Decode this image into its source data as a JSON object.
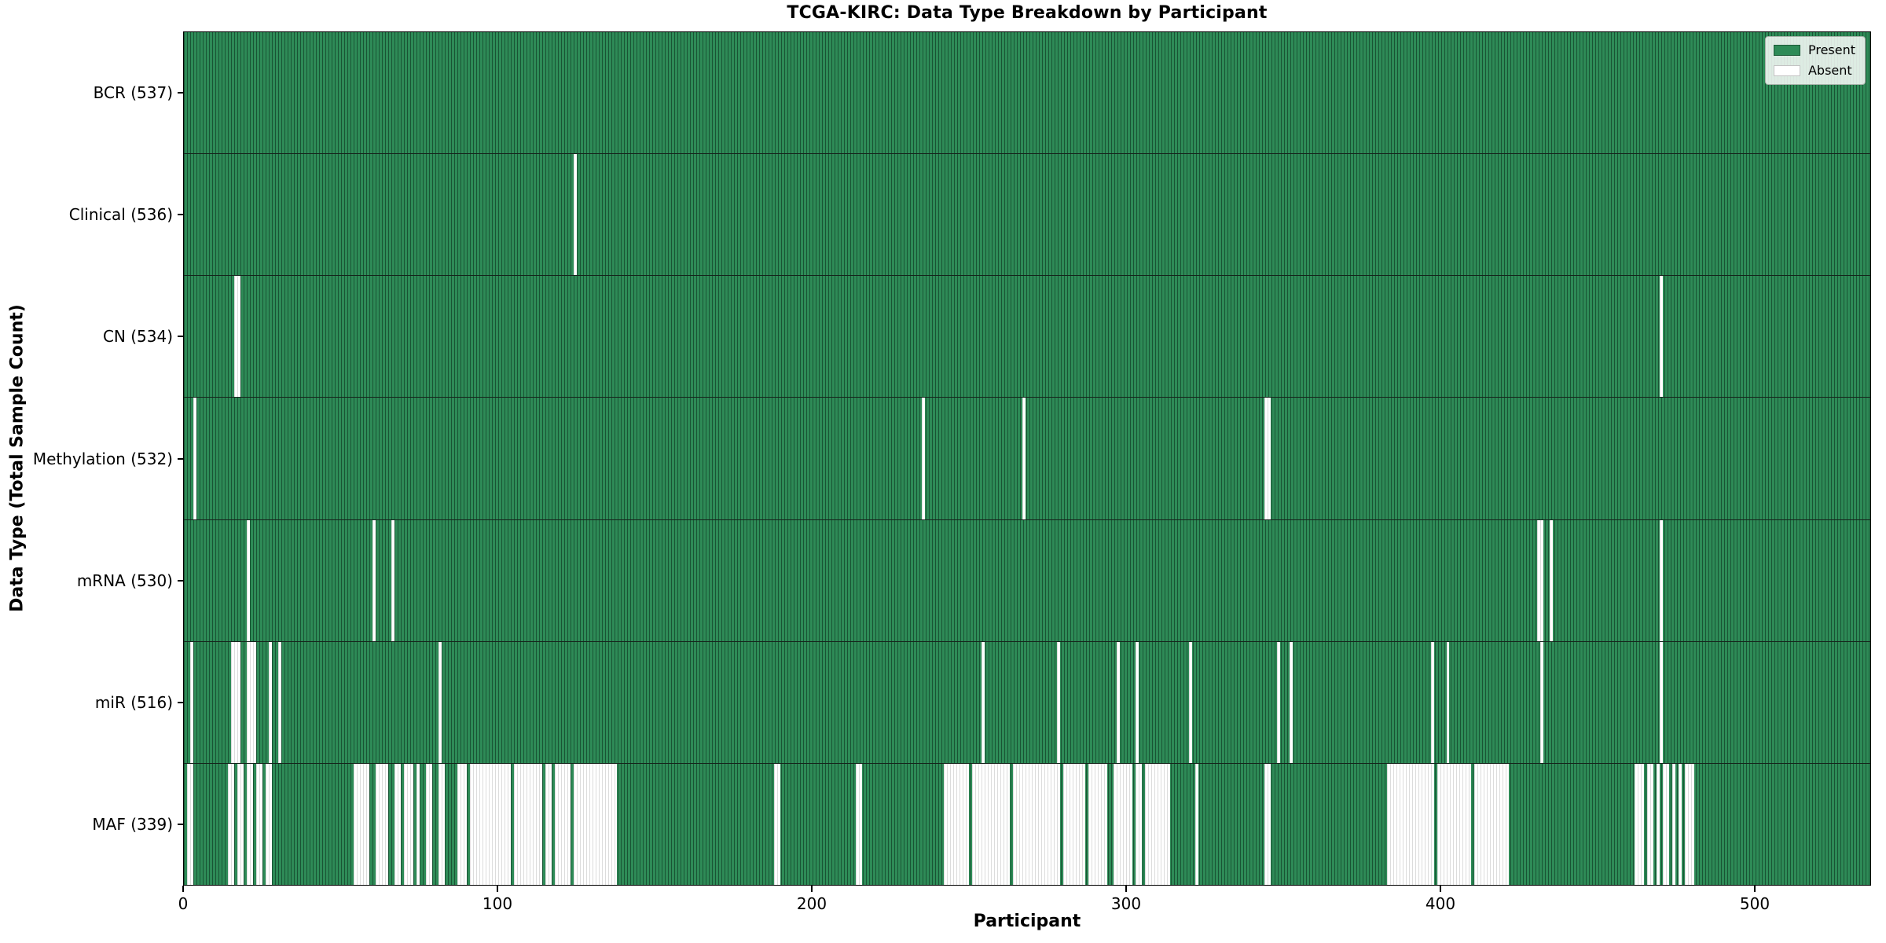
{
  "title": "TCGA-KIRC: Data Type Breakdown by Participant",
  "xlabel": "Participant",
  "ylabel": "Data Type (Total Sample Count)",
  "legend": {
    "present_label": "Present",
    "absent_label": "Absent",
    "position": "upper right"
  },
  "colors": {
    "present": "#2e8b57",
    "present_edge": "#15231b",
    "absent": "#ffffff",
    "absent_edge": "#dcdcdc",
    "spine": "#000000",
    "background": "#ffffff"
  },
  "chart_data": {
    "type": "heatmap",
    "subtype": "presence-absence matrix (horizontal bars per data type, one cell per participant)",
    "n_participants": 537,
    "x_axis": {
      "label": "Participant",
      "ticks": [
        0,
        100,
        200,
        300,
        400,
        500
      ],
      "range": [
        0,
        537
      ]
    },
    "y_axis": {
      "label": "Data Type (Total Sample Count)",
      "grid": false
    },
    "legend_entries": [
      "Present",
      "Absent"
    ],
    "rows": [
      {
        "data_type": "BCR",
        "label": "BCR (537)",
        "present_count": 537,
        "absent_count": 0,
        "absent_ranges": []
      },
      {
        "data_type": "Clinical",
        "label": "Clinical (536)",
        "present_count": 536,
        "absent_count": 1,
        "absent_ranges": [
          [
            124,
            124
          ]
        ]
      },
      {
        "data_type": "CN",
        "label": "CN (534)",
        "present_count": 534,
        "absent_count": 3,
        "absent_ranges": [
          [
            16,
            17
          ],
          [
            470,
            470
          ]
        ]
      },
      {
        "data_type": "Methylation",
        "label": "Methylation (532)",
        "present_count": 532,
        "absent_count": 5,
        "absent_ranges": [
          [
            3,
            3
          ],
          [
            235,
            235
          ],
          [
            267,
            267
          ],
          [
            344,
            345
          ]
        ]
      },
      {
        "data_type": "mRNA",
        "label": "mRNA (530)",
        "present_count": 530,
        "absent_count": 7,
        "absent_ranges": [
          [
            20,
            20
          ],
          [
            60,
            60
          ],
          [
            66,
            66
          ],
          [
            431,
            432
          ],
          [
            435,
            435
          ],
          [
            470,
            470
          ]
        ]
      },
      {
        "data_type": "miR",
        "label": "miR (516)",
        "present_count": 516,
        "absent_count": 21,
        "absent_ranges": [
          [
            2,
            2
          ],
          [
            15,
            17
          ],
          [
            20,
            22
          ],
          [
            27,
            27
          ],
          [
            30,
            30
          ],
          [
            81,
            81
          ],
          [
            254,
            254
          ],
          [
            278,
            278
          ],
          [
            297,
            297
          ],
          [
            303,
            303
          ],
          [
            320,
            320
          ],
          [
            348,
            348
          ],
          [
            352,
            352
          ],
          [
            397,
            397
          ],
          [
            402,
            402
          ],
          [
            432,
            432
          ],
          [
            470,
            470
          ]
        ]
      },
      {
        "data_type": "MAF",
        "label": "MAF (339)",
        "present_count": 339,
        "absent_count": 198,
        "absent_ranges": [
          [
            1,
            2
          ],
          [
            14,
            15
          ],
          [
            17,
            18
          ],
          [
            20,
            21
          ],
          [
            23,
            24
          ],
          [
            26,
            27
          ],
          [
            54,
            58
          ],
          [
            61,
            64
          ],
          [
            67,
            68
          ],
          [
            70,
            72
          ],
          [
            74,
            74
          ],
          [
            77,
            78
          ],
          [
            81,
            82
          ],
          [
            87,
            89
          ],
          [
            91,
            103
          ],
          [
            105,
            113
          ],
          [
            115,
            116
          ],
          [
            118,
            122
          ],
          [
            124,
            137
          ],
          [
            188,
            189
          ],
          [
            214,
            215
          ],
          [
            242,
            249
          ],
          [
            251,
            262
          ],
          [
            264,
            278
          ],
          [
            280,
            286
          ],
          [
            288,
            293
          ],
          [
            296,
            301
          ],
          [
            303,
            304
          ],
          [
            306,
            313
          ],
          [
            322,
            322
          ],
          [
            344,
            345
          ],
          [
            383,
            397
          ],
          [
            399,
            409
          ],
          [
            411,
            421
          ],
          [
            462,
            464
          ],
          [
            466,
            467
          ],
          [
            469,
            469
          ],
          [
            471,
            472
          ],
          [
            474,
            474
          ],
          [
            476,
            476
          ],
          [
            478,
            480
          ]
        ]
      }
    ]
  }
}
